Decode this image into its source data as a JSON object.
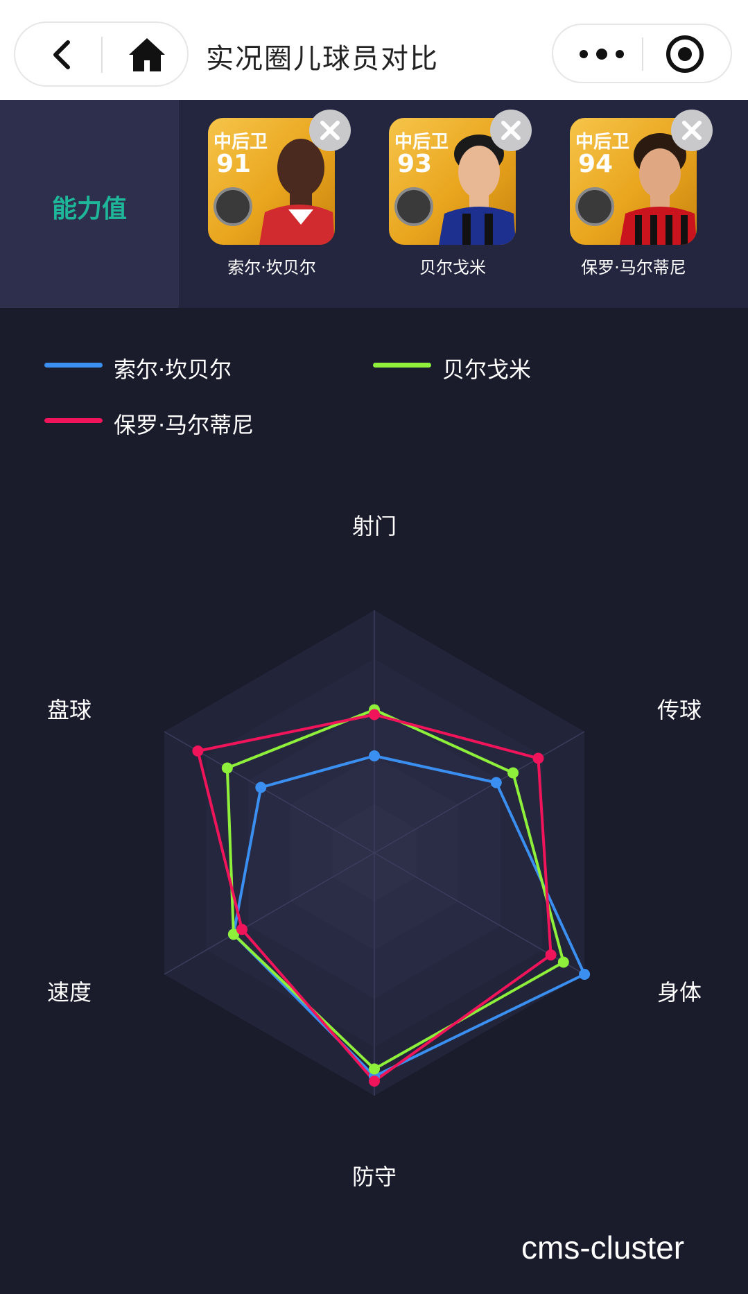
{
  "navbar": {
    "title": "实况圈儿球员对比"
  },
  "header": {
    "ability_label": "能力值"
  },
  "players": [
    {
      "position": "中后卫",
      "rating": "91",
      "name": "索尔·坎贝尔",
      "color": "#3a8ff0"
    },
    {
      "position": "中后卫",
      "rating": "93",
      "name": "贝尔戈米",
      "color": "#8ff03c"
    },
    {
      "position": "中后卫",
      "rating": "94",
      "name": "保罗·马尔蒂尼",
      "color": "#f0145a"
    }
  ],
  "legend": [
    {
      "name": "索尔·坎贝尔",
      "color": "#3a8ff0"
    },
    {
      "name": "贝尔戈米",
      "color": "#8ff03c"
    },
    {
      "name": "保罗·马尔蒂尼",
      "color": "#f0145a"
    }
  ],
  "chart_data": {
    "type": "radar",
    "axes": [
      "射门",
      "传球",
      "身体",
      "防守",
      "速度",
      "盘球"
    ],
    "max": 100,
    "series": [
      {
        "name": "索尔·坎贝尔",
        "color": "#3a8ff0",
        "values": [
          40,
          58,
          100,
          92,
          67,
          54
        ]
      },
      {
        "name": "贝尔戈米",
        "color": "#8ff03c",
        "values": [
          59,
          66,
          90,
          89,
          67,
          70
        ]
      },
      {
        "name": "保罗·马尔蒂尼",
        "color": "#f0145a",
        "values": [
          57,
          78,
          84,
          94,
          63,
          84
        ]
      }
    ]
  },
  "watermark": "cms-cluster"
}
